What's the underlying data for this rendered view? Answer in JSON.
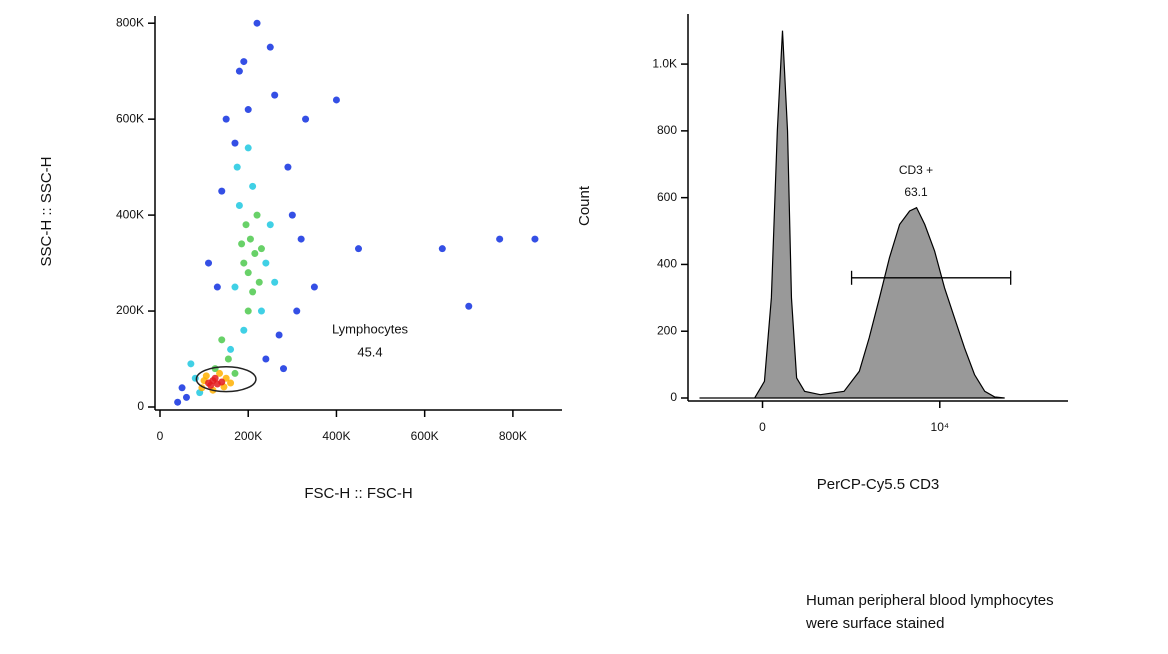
{
  "chart_data": [
    {
      "type": "scatter",
      "xlabel": "FSC-H :: FSC-H",
      "ylabel": "SSC-H :: SSC-H",
      "xlim": [
        0,
        900000
      ],
      "ylim": [
        0,
        815000
      ],
      "xticks": [
        0,
        {
          "value": 200000,
          "label": "200K"
        },
        {
          "value": 400000,
          "label": "400K"
        },
        {
          "value": 600000,
          "label": "600K"
        },
        {
          "value": 800000,
          "label": "800K"
        }
      ],
      "yticks": [
        0,
        {
          "value": 200000,
          "label": "200K"
        },
        {
          "value": 400000,
          "label": "400K"
        },
        {
          "value": 600000,
          "label": "600K"
        },
        {
          "value": 800000,
          "label": "800K"
        }
      ],
      "series": [
        {
          "color": "#1030e0",
          "x": [
            150000,
            260000,
            290000,
            140000,
            180000,
            300000,
            320000,
            250000,
            220000,
            110000,
            60000,
            50000,
            40000,
            350000,
            170000,
            270000,
            240000,
            200000,
            190000,
            280000,
            310000,
            130000,
            330000,
            450000,
            640000,
            770000,
            850000,
            700000,
            400000
          ],
          "values": [
            600000,
            650000,
            500000,
            450000,
            700000,
            400000,
            350000,
            750000,
            800000,
            300000,
            20000,
            40000,
            10000,
            250000,
            550000,
            150000,
            100000,
            620000,
            720000,
            80000,
            200000,
            250000,
            600000,
            330000,
            330000,
            350000,
            350000,
            210000,
            640000
          ]
        },
        {
          "color": "#1fc8e0",
          "x": [
            180000,
            240000,
            170000,
            250000,
            230000,
            190000,
            160000,
            210000,
            260000,
            175000,
            90000,
            80000,
            70000,
            200000
          ],
          "values": [
            420000,
            300000,
            250000,
            380000,
            200000,
            160000,
            120000,
            460000,
            260000,
            500000,
            30000,
            60000,
            90000,
            540000
          ]
        },
        {
          "color": "#4ec94e",
          "x": [
            200000,
            215000,
            205000,
            190000,
            225000,
            210000,
            195000,
            220000,
            230000,
            185000,
            200000,
            140000,
            155000,
            125000,
            170000
          ],
          "values": [
            280000,
            320000,
            350000,
            300000,
            260000,
            240000,
            380000,
            400000,
            330000,
            340000,
            200000,
            140000,
            100000,
            80000,
            70000
          ]
        },
        {
          "color": "#ffb000",
          "x": [
            95000,
            105000,
            150000,
            145000,
            100000,
            160000,
            135000,
            120000
          ],
          "values": [
            40000,
            65000,
            60000,
            42000,
            55000,
            50000,
            70000,
            35000
          ]
        },
        {
          "color": "#e31a1c",
          "x": [
            110000,
            120000,
            130000,
            125000,
            140000,
            115000
          ],
          "values": [
            50000,
            55000,
            48000,
            60000,
            52000,
            45000
          ]
        }
      ],
      "gate": {
        "label": "Lymphocytes",
        "value": 45.4,
        "cx": 150000,
        "cy": 58000,
        "rx": 135000,
        "ry": 52000
      }
    },
    {
      "type": "histogram-area",
      "xlabel": "PerCP-Cy5.5  CD3",
      "ylabel": "Count",
      "x_scale": "biexponential",
      "xlim": [
        -500,
        300000
      ],
      "ylim": [
        0,
        1150
      ],
      "xticks": [
        0,
        {
          "value": 10000,
          "label": "10⁴"
        }
      ],
      "yticks": [
        0,
        200,
        400,
        600,
        800,
        {
          "value": 1000,
          "label": "1.0K"
        }
      ],
      "color": "#999999",
      "x": [
        -414,
        -33,
        8,
        37,
        63,
        87,
        112,
        133,
        163,
        216,
        355,
        704,
        1080,
        1420,
        1890,
        2490,
        3300,
        4350,
        5270,
        6600,
        8670,
        11400,
        15000,
        19800,
        26100,
        34600,
        45700,
        60000
      ],
      "values": [
        0,
        0,
        50,
        300,
        800,
        1100,
        800,
        300,
        60,
        20,
        10,
        20,
        80,
        180,
        300,
        420,
        520,
        560,
        570,
        520,
        440,
        330,
        240,
        150,
        70,
        20,
        3,
        0
      ],
      "gate": {
        "label": "CD3 +",
        "value": 63.1,
        "start": 870,
        "end": 70800,
        "y": 360
      }
    }
  ],
  "caption": [
    "Human peripheral blood lymphocytes",
    "were surface stained"
  ]
}
